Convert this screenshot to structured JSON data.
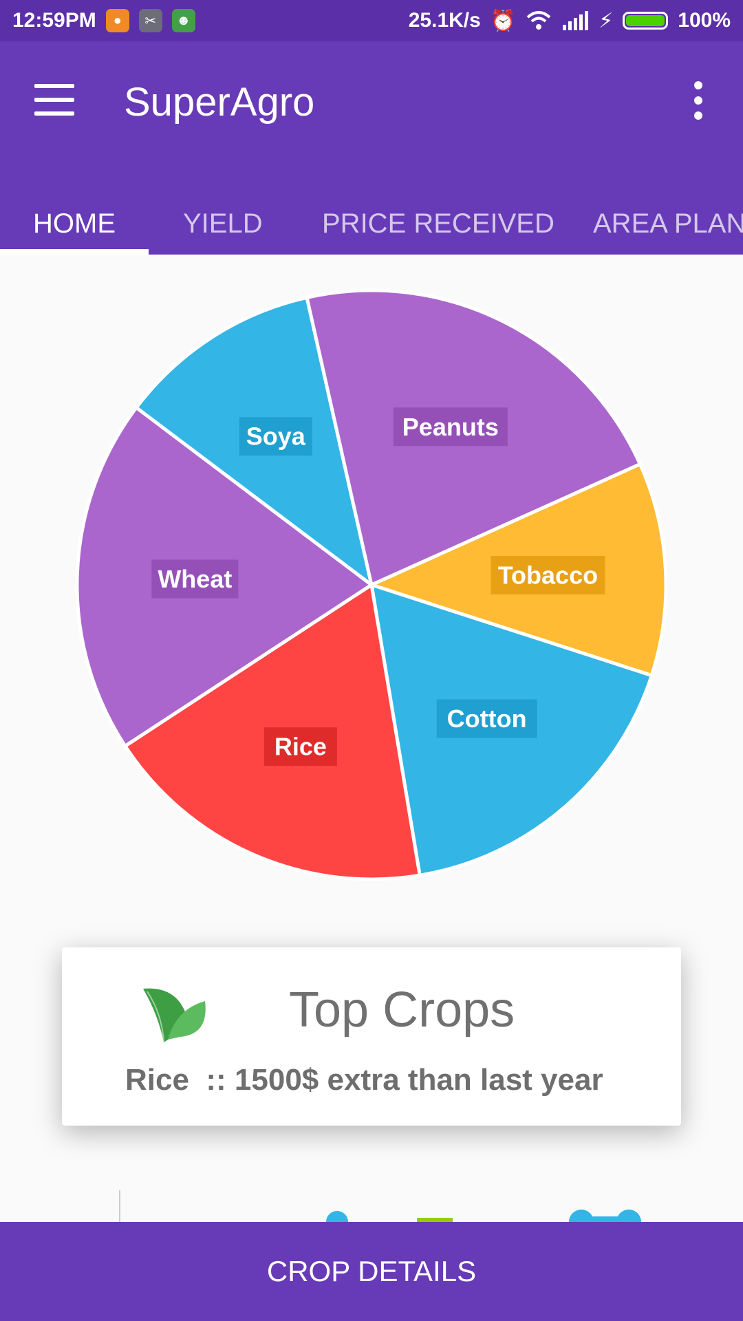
{
  "status_bar": {
    "time": "12:59PM",
    "net_speed": "25.1K/s",
    "battery": "100%",
    "battery_level": 1.0
  },
  "app_bar": {
    "title": "SuperAgro",
    "tabs": [
      {
        "label": "HOME",
        "active": true
      },
      {
        "label": "YIELD",
        "active": false
      },
      {
        "label": "PRICE RECEIVED",
        "active": false
      },
      {
        "label": "AREA PLAN",
        "active": false
      }
    ]
  },
  "chart_data": {
    "type": "pie",
    "slices": [
      {
        "label": "Tobacco",
        "value": 11.7,
        "color": "#FFBB33",
        "label_bg": "#E8A115"
      },
      {
        "label": "Cotton",
        "value": 17.4,
        "color": "#33B5E5",
        "label_bg": "#1FA0D0"
      },
      {
        "label": "Rice",
        "value": 18.4,
        "color": "#FF4444",
        "label_bg": "#E02B2B"
      },
      {
        "label": "Wheat",
        "value": 19.5,
        "color": "#AA66CC",
        "label_bg": "#9550B8"
      },
      {
        "label": "Soya",
        "value": 11.2,
        "color": "#33B5E5",
        "label_bg": "#1FA0D0"
      },
      {
        "label": "Peanuts",
        "value": 21.8,
        "color": "#AA66CC",
        "label_bg": "#9550B8"
      }
    ]
  },
  "card": {
    "title": "Top Crops",
    "text": "Rice  :: 1500$ extra than last year",
    "icon": "leaf-icon",
    "icon_color": "#4CAF50"
  },
  "bottom_button": {
    "label": "CROP DETAILS"
  },
  "colors": {
    "primary": "#673AB7",
    "status_bar": "#5B2FA8"
  }
}
